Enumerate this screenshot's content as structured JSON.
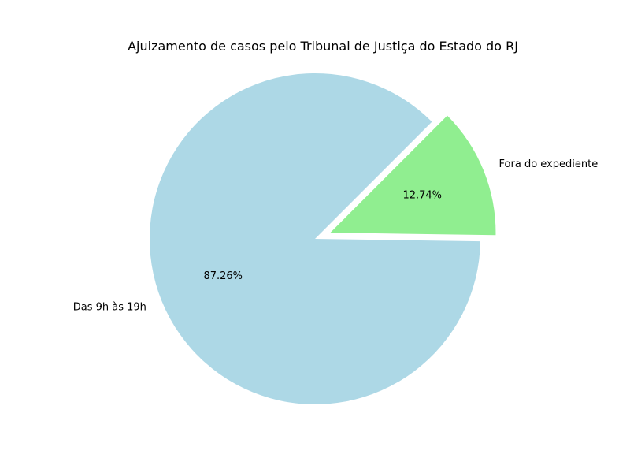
{
  "chart_data": {
    "type": "pie",
    "title": "Ajuizamento de casos pelo Tribunal de Justiça do Estado do RJ",
    "slices": [
      {
        "label": "Das 9h às 19h",
        "value": 87.26,
        "percent_label": "87.26%",
        "color": "#add8e6",
        "exploded": false
      },
      {
        "label": "Fora do expediente",
        "value": 12.74,
        "percent_label": "12.74%",
        "color": "#90ee90",
        "exploded": true
      }
    ],
    "start_angle_deg": 45
  }
}
